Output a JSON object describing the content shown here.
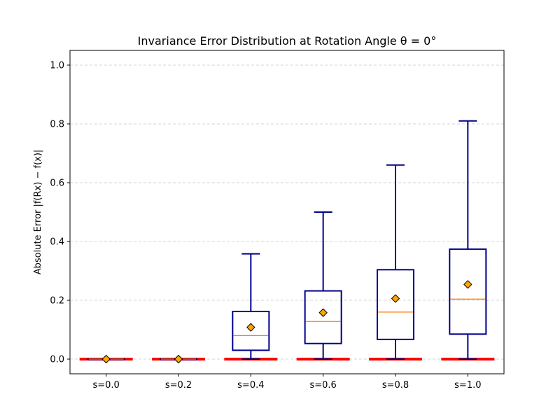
{
  "chart_data": {
    "type": "box",
    "title": "Invariance Error Distribution at Rotation Angle θ = 0°",
    "xlabel": "",
    "ylabel": "Absolute Error |f(Rx) − f(x)|",
    "ylim": [
      -0.05,
      1.05
    ],
    "yticks": [
      "0.0",
      "0.2",
      "0.4",
      "0.6",
      "0.8",
      "1.0"
    ],
    "grid": "y-dashed",
    "categories": [
      "s=0.0",
      "s=0.2",
      "s=0.4",
      "s=0.6",
      "s=0.8",
      "s=1.0"
    ],
    "boxes": [
      {
        "min": 0.0,
        "q1": 0.0,
        "median": 0.0,
        "q3": 0.0,
        "max": 0.0,
        "mean": 0.0
      },
      {
        "min": 0.0,
        "q1": 0.0,
        "median": 0.0,
        "q3": 0.0,
        "max": 0.0,
        "mean": 0.0
      },
      {
        "min": 0.0,
        "q1": 0.03,
        "median": 0.08,
        "q3": 0.162,
        "max": 0.358,
        "mean": 0.108
      },
      {
        "min": 0.0,
        "q1": 0.053,
        "median": 0.128,
        "q3": 0.232,
        "max": 0.5,
        "mean": 0.158
      },
      {
        "min": 0.0,
        "q1": 0.067,
        "median": 0.16,
        "q3": 0.304,
        "max": 0.66,
        "mean": 0.206
      },
      {
        "min": 0.0,
        "q1": 0.085,
        "median": 0.204,
        "q3": 0.374,
        "max": 0.81,
        "mean": 0.254
      }
    ],
    "baseline_value": 0.0,
    "colors": {
      "box": "#00008b",
      "median": "#ff7f0e",
      "mean_marker": "#ffa500",
      "baseline": "#ff0000",
      "grid": "#c8c8c8"
    }
  }
}
